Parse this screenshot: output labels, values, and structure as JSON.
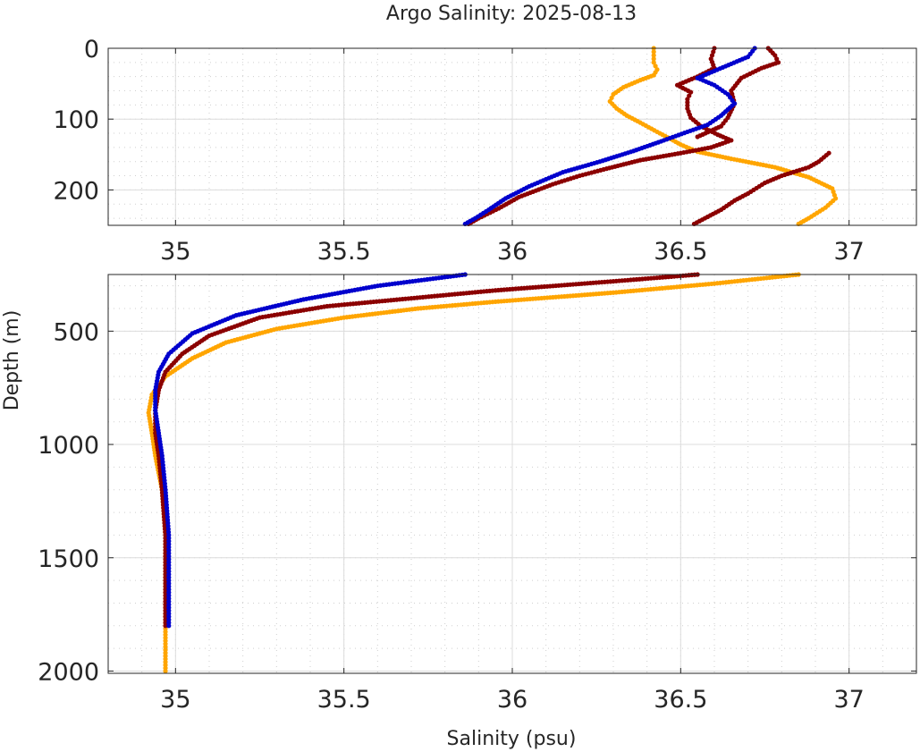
{
  "figure": {
    "title": "Argo Salinity: 2025-08-13",
    "xlabel": "Salinity (psu)",
    "ylabel": "Depth (m)"
  },
  "chart_data": [
    {
      "type": "scatter",
      "panel": "top",
      "title": "Argo Salinity: 2025-08-13",
      "xlabel": "",
      "ylabel": "",
      "xlim": [
        34.8,
        37.2
      ],
      "ylim": [
        250,
        0
      ],
      "y_reversed": true,
      "grid": "on",
      "xticks": [
        35,
        35.5,
        36,
        36.5,
        37
      ],
      "xtick_labels": [
        "35",
        "35.5",
        "36",
        "36.5",
        "37"
      ],
      "yticks": [
        0,
        100,
        200
      ],
      "ytick_labels": [
        "0",
        "100",
        "200"
      ],
      "series": [
        {
          "name": "profile-orange",
          "color": "#ffa500",
          "points": [
            [
              36.42,
              0
            ],
            [
              36.42,
              20
            ],
            [
              36.43,
              30
            ],
            [
              36.42,
              38
            ],
            [
              36.38,
              45
            ],
            [
              36.33,
              55
            ],
            [
              36.3,
              65
            ],
            [
              36.29,
              75
            ],
            [
              36.31,
              85
            ],
            [
              36.34,
              95
            ],
            [
              36.38,
              105
            ],
            [
              36.43,
              118
            ],
            [
              36.47,
              128
            ],
            [
              36.5,
              136
            ],
            [
              36.55,
              146
            ],
            [
              36.65,
              156
            ],
            [
              36.78,
              168
            ],
            [
              36.88,
              182
            ],
            [
              36.95,
              198
            ],
            [
              36.96,
              212
            ],
            [
              36.93,
              225
            ],
            [
              36.88,
              240
            ],
            [
              36.85,
              248
            ]
          ]
        },
        {
          "name": "profile-darkred",
          "color": "#8b0000",
          "points": [
            [
              36.6,
              0
            ],
            [
              36.59,
              15
            ],
            [
              36.6,
              28
            ],
            [
              36.55,
              40
            ],
            [
              36.49,
              52
            ],
            [
              36.53,
              62
            ],
            [
              36.52,
              72
            ],
            [
              36.52,
              85
            ],
            [
              36.53,
              98
            ],
            [
              36.56,
              110
            ],
            [
              36.61,
              122
            ],
            [
              36.65,
              130
            ],
            [
              36.59,
              140
            ],
            [
              36.5,
              148
            ],
            [
              36.38,
              158
            ],
            [
              36.28,
              170
            ],
            [
              36.2,
              180
            ],
            [
              36.12,
              192
            ],
            [
              36.02,
              210
            ],
            [
              35.96,
              226
            ],
            [
              35.9,
              240
            ],
            [
              35.87,
              248
            ]
          ]
        },
        {
          "name": "profile-darkred-upper-right",
          "color": "#8b0000",
          "points": [
            [
              36.76,
              0
            ],
            [
              36.78,
              10
            ],
            [
              36.79,
              20
            ],
            [
              36.74,
              28
            ],
            [
              36.68,
              42
            ],
            [
              36.65,
              60
            ],
            [
              36.66,
              78
            ],
            [
              36.64,
              98
            ],
            [
              36.62,
              110
            ],
            [
              36.55,
              125
            ]
          ]
        },
        {
          "name": "profile-darkred-deep-right",
          "color": "#8b0000",
          "points": [
            [
              36.94,
              148
            ],
            [
              36.91,
              160
            ],
            [
              36.88,
              168
            ],
            [
              36.8,
              180
            ],
            [
              36.75,
              190
            ],
            [
              36.7,
              205
            ],
            [
              36.66,
              215
            ],
            [
              36.62,
              228
            ],
            [
              36.58,
              238
            ],
            [
              36.54,
              248
            ]
          ]
        },
        {
          "name": "profile-blue",
          "color": "#0000cd",
          "points": [
            [
              36.72,
              0
            ],
            [
              36.7,
              12
            ],
            [
              36.65,
              22
            ],
            [
              36.6,
              32
            ],
            [
              36.55,
              42
            ],
            [
              36.6,
              52
            ],
            [
              36.64,
              65
            ],
            [
              36.66,
              78
            ],
            [
              36.62,
              95
            ],
            [
              36.58,
              108
            ],
            [
              36.52,
              118
            ],
            [
              36.45,
              130
            ],
            [
              36.36,
              145
            ],
            [
              36.26,
              160
            ],
            [
              36.15,
              175
            ],
            [
              36.05,
              195
            ],
            [
              35.98,
              212
            ],
            [
              35.93,
              228
            ],
            [
              35.89,
              240
            ],
            [
              35.86,
              248
            ]
          ]
        }
      ]
    },
    {
      "type": "scatter",
      "panel": "bottom",
      "xlabel": "Salinity (psu)",
      "ylabel": "Depth (m)",
      "xlim": [
        34.8,
        37.2
      ],
      "ylim": [
        2010,
        250
      ],
      "y_reversed": true,
      "grid": "on",
      "xticks": [
        35,
        35.5,
        36,
        36.5,
        37
      ],
      "xtick_labels": [
        "35",
        "35.5",
        "36",
        "36.5",
        "37"
      ],
      "yticks": [
        500,
        1000,
        1500,
        2000
      ],
      "ytick_labels": [
        "500",
        "1000",
        "1500",
        "2000"
      ],
      "series": [
        {
          "name": "profile-orange",
          "color": "#ffa500",
          "points": [
            [
              36.85,
              250
            ],
            [
              36.6,
              290
            ],
            [
              36.3,
              330
            ],
            [
              35.95,
              370
            ],
            [
              35.72,
              400
            ],
            [
              35.5,
              440
            ],
            [
              35.3,
              490
            ],
            [
              35.15,
              550
            ],
            [
              35.05,
              620
            ],
            [
              34.97,
              700
            ],
            [
              34.93,
              780
            ],
            [
              34.92,
              860
            ],
            [
              34.93,
              950
            ],
            [
              34.94,
              1050
            ],
            [
              34.96,
              1200
            ],
            [
              34.97,
              1400
            ],
            [
              34.97,
              1600
            ],
            [
              34.97,
              1800
            ],
            [
              34.97,
              2000
            ]
          ]
        },
        {
          "name": "profile-darkred",
          "color": "#8b0000",
          "points": [
            [
              36.55,
              250
            ],
            [
              36.3,
              280
            ],
            [
              35.95,
              320
            ],
            [
              35.7,
              355
            ],
            [
              35.45,
              390
            ],
            [
              35.25,
              440
            ],
            [
              35.1,
              520
            ],
            [
              35.02,
              600
            ],
            [
              34.97,
              680
            ],
            [
              34.95,
              760
            ],
            [
              34.94,
              850
            ],
            [
              34.94,
              950
            ],
            [
              34.95,
              1050
            ],
            [
              34.96,
              1200
            ],
            [
              34.97,
              1400
            ],
            [
              34.97,
              1600
            ],
            [
              34.97,
              1800
            ]
          ]
        },
        {
          "name": "profile-blue",
          "color": "#0000cd",
          "points": [
            [
              35.86,
              250
            ],
            [
              35.6,
              300
            ],
            [
              35.38,
              360
            ],
            [
              35.18,
              430
            ],
            [
              35.05,
              510
            ],
            [
              34.98,
              600
            ],
            [
              34.95,
              680
            ],
            [
              34.94,
              760
            ],
            [
              34.94,
              850
            ],
            [
              34.95,
              950
            ],
            [
              34.96,
              1050
            ],
            [
              34.97,
              1200
            ],
            [
              34.98,
              1400
            ],
            [
              34.98,
              1600
            ],
            [
              34.98,
              1800
            ]
          ]
        }
      ]
    }
  ]
}
